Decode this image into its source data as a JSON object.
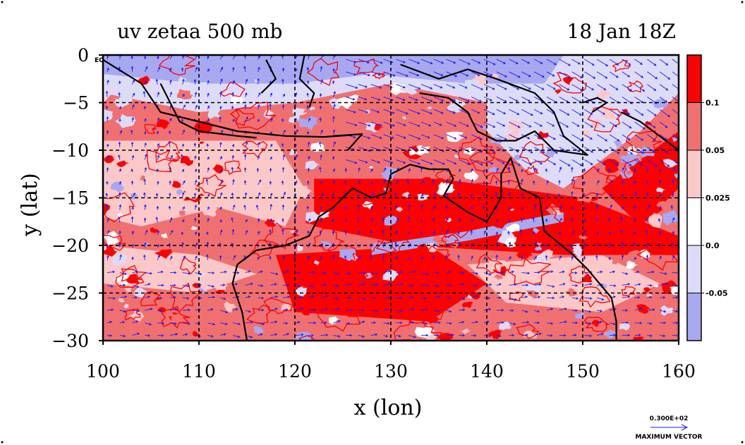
{
  "title_left": "uv zetaa 500 mb",
  "title_right": "18 Jan 18Z",
  "xlabel": "x (lon)",
  "ylabel": "y (lat)",
  "corner_label": "EQ",
  "vector_legend": {
    "value": "0.300E+02",
    "label": "MAXIMUM VECTOR"
  },
  "colors": {
    "strong_pos": "#ff0000",
    "mid_pos": "#f07070",
    "weak_pos": "#fbc8c8",
    "near_zero": "#ffffff",
    "weak_neg": "#dcdcf8",
    "strong_neg": "#a8a8f0",
    "vectors": "#1a1aff",
    "coastline": "#000000"
  },
  "chart_data": {
    "type": "heatmap",
    "x_range": [
      100,
      160
    ],
    "y_range": [
      -30,
      0
    ],
    "x_ticks": [
      100,
      110,
      120,
      130,
      140,
      150,
      160
    ],
    "y_ticks": [
      0,
      -5,
      -10,
      -15,
      -20,
      -25,
      -30
    ],
    "x_tick_labels": [
      "100",
      "110",
      "120",
      "130",
      "140",
      "150",
      "160"
    ],
    "y_tick_labels": [
      "0",
      "−5",
      "−10",
      "−15",
      "−20",
      "−25",
      "−30"
    ],
    "colorbar": {
      "levels": [
        "0.1",
        "0.05",
        "0.025",
        "0.0",
        "-0.05"
      ],
      "bands": [
        "strong_pos",
        "mid_pos",
        "weak_pos",
        "near_zero",
        "weak_neg",
        "strong_neg"
      ]
    },
    "grid": true
  }
}
